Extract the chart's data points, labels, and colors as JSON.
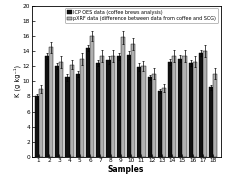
{
  "samples": [
    1,
    2,
    3,
    4,
    5,
    6,
    7,
    8,
    9,
    10,
    11,
    12,
    13,
    14,
    15,
    16,
    17,
    18
  ],
  "icp_values": [
    8.0,
    13.3,
    12.0,
    10.5,
    11.0,
    14.4,
    12.4,
    12.8,
    13.3,
    13.5,
    11.9,
    10.5,
    8.7,
    12.6,
    13.0,
    12.4,
    13.8,
    9.2
  ],
  "pxrf_values": [
    9.0,
    14.5,
    12.6,
    12.2,
    13.0,
    16.0,
    13.4,
    13.4,
    15.8,
    14.9,
    12.0,
    11.0,
    9.1,
    13.4,
    13.4,
    12.6,
    14.0,
    11.0
  ],
  "icp_errors": [
    0.3,
    0.4,
    0.4,
    0.4,
    0.4,
    0.4,
    0.4,
    0.5,
    0.5,
    0.5,
    0.5,
    0.3,
    0.3,
    0.4,
    0.5,
    0.4,
    0.4,
    0.3
  ],
  "pxrf_errors": [
    0.5,
    0.7,
    0.8,
    0.6,
    0.8,
    0.7,
    0.8,
    0.8,
    0.9,
    0.8,
    0.7,
    0.7,
    0.5,
    0.8,
    0.8,
    0.7,
    0.8,
    0.7
  ],
  "icp_color": "#111111",
  "pxrf_color": "#b0b0b0",
  "ylabel": "K (g kg⁻¹)",
  "xlabel": "Samples",
  "ylim": [
    0,
    20
  ],
  "yticks": [
    0,
    2,
    4,
    6,
    8,
    10,
    12,
    14,
    16,
    18,
    20
  ],
  "legend_icp": "ICP OES data (coffee brews analysis)",
  "legend_pxrf": "pXRF data (difference between data from coffee and SCG)",
  "bar_width": 0.4,
  "edgecolor": "#000000",
  "background_color": "#ffffff"
}
